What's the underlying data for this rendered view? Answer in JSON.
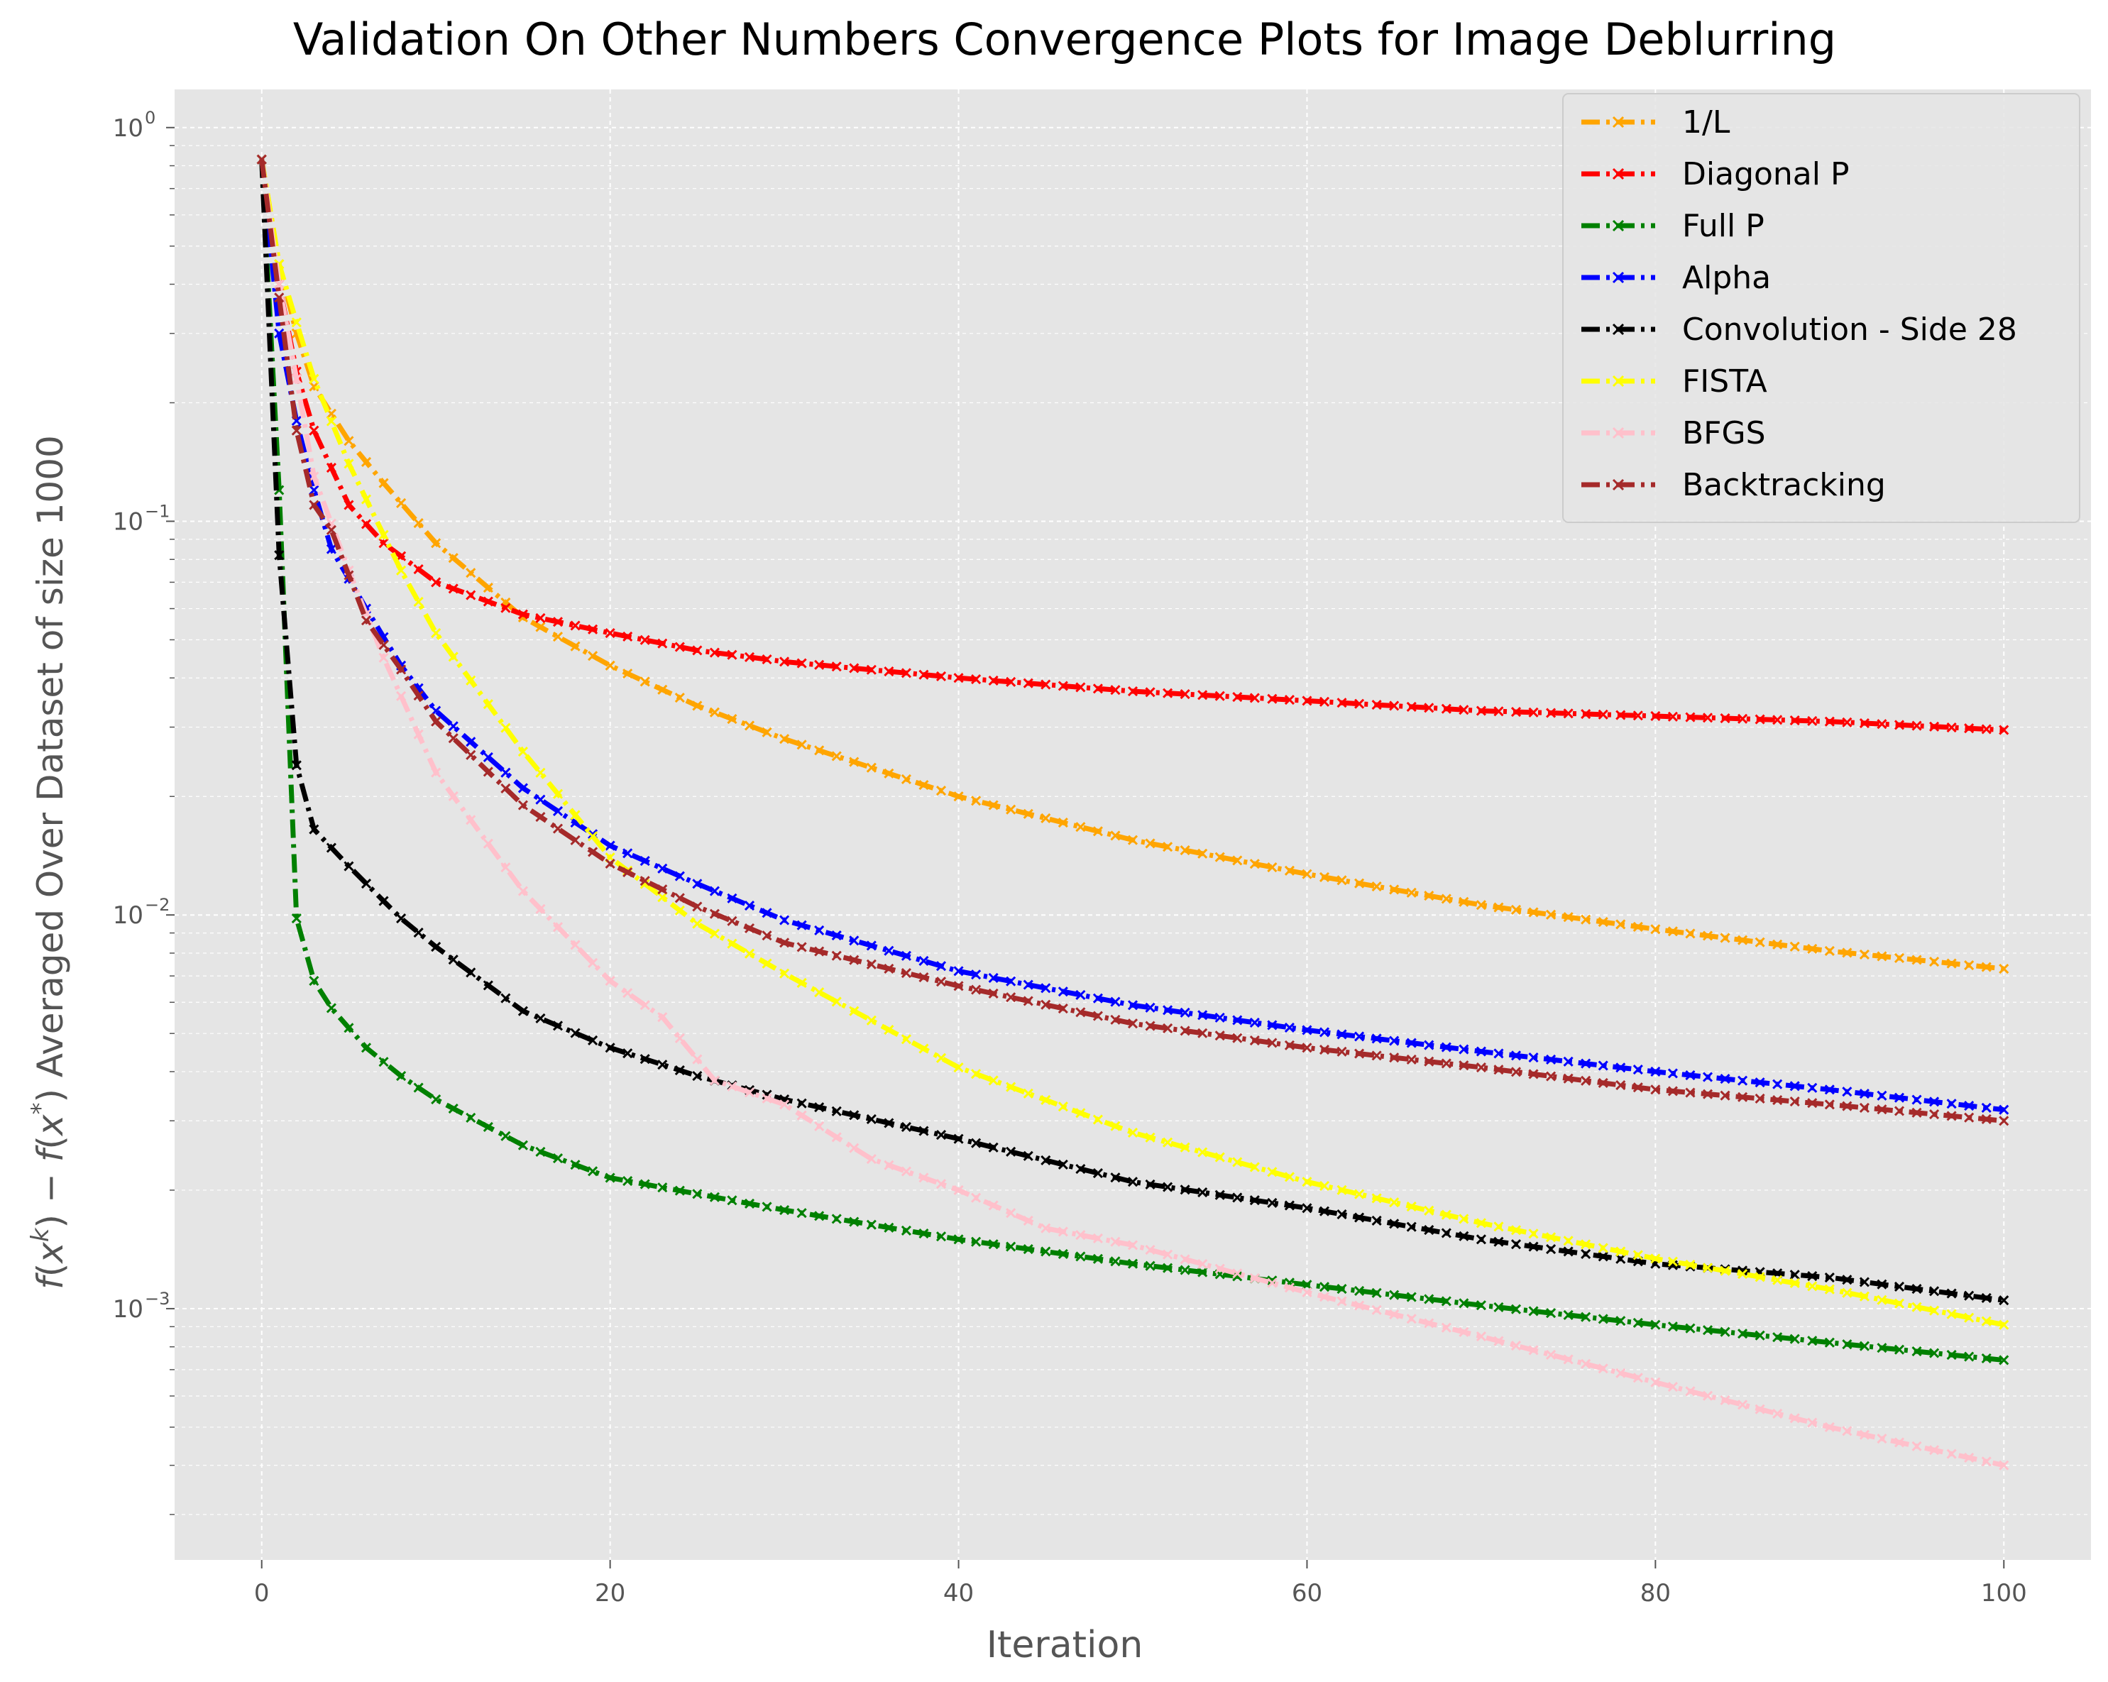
{
  "chart_data": {
    "type": "line",
    "title": "Validation On Other Numbers Convergence Plots for Image Deblurring",
    "xlabel": "Iteration",
    "ylabel": "f(x^k) − f(x*) Averaged Over Dataset of size 1000",
    "ylabel_parts": {
      "f1": "f",
      "x1": "x",
      "k": "k",
      "mid": ") − ",
      "f2": "f",
      "x2": "x",
      "star": "*",
      "tail": ") Averaged Over Dataset of size 1000"
    },
    "yscale": "log",
    "xlim": [
      -5,
      105
    ],
    "ylim": [
      0.00023,
      1.25
    ],
    "xticks": [
      0,
      20,
      40,
      60,
      80,
      100
    ],
    "xtick_labels": [
      "0",
      "20",
      "40",
      "60",
      "80",
      "100"
    ],
    "yticks": [
      0.001,
      0.01,
      0.1,
      1
    ],
    "ytick_labels": [
      {
        "base": "10",
        "exp": "−3"
      },
      {
        "base": "10",
        "exp": "−2"
      },
      {
        "base": "10",
        "exp": "−1"
      },
      {
        "base": "10",
        "exp": "0"
      }
    ],
    "grid": true,
    "legend_position": "top-right",
    "background": "#e5e5e5",
    "n_iterations": 100,
    "series": [
      {
        "name": "1/L",
        "color": "#ffa500",
        "marker": "x",
        "anchors": [
          [
            0,
            0.83
          ],
          [
            1,
            0.45
          ],
          [
            2,
            0.3
          ],
          [
            3,
            0.22
          ],
          [
            5,
            0.16
          ],
          [
            7,
            0.125
          ],
          [
            10,
            0.088
          ],
          [
            15,
            0.057
          ],
          [
            20,
            0.043
          ],
          [
            25,
            0.034
          ],
          [
            30,
            0.028
          ],
          [
            40,
            0.02
          ],
          [
            50,
            0.0155
          ],
          [
            60,
            0.0127
          ],
          [
            70,
            0.0106
          ],
          [
            80,
            0.0092
          ],
          [
            90,
            0.0081
          ],
          [
            100,
            0.0073
          ]
        ]
      },
      {
        "name": "Diagonal P",
        "color": "#ff0000",
        "marker": "x",
        "anchors": [
          [
            0,
            0.83
          ],
          [
            1,
            0.4
          ],
          [
            2,
            0.24
          ],
          [
            3,
            0.17
          ],
          [
            5,
            0.11
          ],
          [
            7,
            0.088
          ],
          [
            10,
            0.07
          ],
          [
            15,
            0.058
          ],
          [
            20,
            0.052
          ],
          [
            25,
            0.047
          ],
          [
            30,
            0.044
          ],
          [
            40,
            0.04
          ],
          [
            50,
            0.037
          ],
          [
            60,
            0.035
          ],
          [
            70,
            0.033
          ],
          [
            80,
            0.032
          ],
          [
            90,
            0.031
          ],
          [
            100,
            0.0295
          ]
        ]
      },
      {
        "name": "Full P",
        "color": "#008000",
        "marker": "x",
        "anchors": [
          [
            0,
            0.83
          ],
          [
            1,
            0.12
          ],
          [
            2,
            0.0098
          ],
          [
            3,
            0.0068
          ],
          [
            4,
            0.0058
          ],
          [
            6,
            0.0046
          ],
          [
            8,
            0.0039
          ],
          [
            10,
            0.0034
          ],
          [
            15,
            0.0026
          ],
          [
            20,
            0.00215
          ],
          [
            30,
            0.00178
          ],
          [
            40,
            0.0015
          ],
          [
            50,
            0.0013
          ],
          [
            60,
            0.00115
          ],
          [
            70,
            0.00102
          ],
          [
            80,
            0.00091
          ],
          [
            90,
            0.00082
          ],
          [
            100,
            0.00074
          ]
        ]
      },
      {
        "name": "Alpha",
        "color": "#0000ff",
        "marker": "x",
        "anchors": [
          [
            0,
            0.83
          ],
          [
            1,
            0.3
          ],
          [
            2,
            0.18
          ],
          [
            3,
            0.12
          ],
          [
            4,
            0.085
          ],
          [
            6,
            0.06
          ],
          [
            8,
            0.043
          ],
          [
            10,
            0.033
          ],
          [
            15,
            0.021
          ],
          [
            20,
            0.015
          ],
          [
            25,
            0.012
          ],
          [
            30,
            0.0097
          ],
          [
            40,
            0.0072
          ],
          [
            50,
            0.0059
          ],
          [
            60,
            0.0051
          ],
          [
            70,
            0.0045
          ],
          [
            80,
            0.004
          ],
          [
            90,
            0.0036
          ],
          [
            100,
            0.0032
          ]
        ]
      },
      {
        "name": "Convolution - Side 28",
        "color": "#000000",
        "marker": "x",
        "anchors": [
          [
            0,
            0.83
          ],
          [
            1,
            0.082
          ],
          [
            2,
            0.024
          ],
          [
            3,
            0.0165
          ],
          [
            5,
            0.0133
          ],
          [
            8,
            0.0098
          ],
          [
            10,
            0.0083
          ],
          [
            15,
            0.0057
          ],
          [
            20,
            0.0046
          ],
          [
            25,
            0.0039
          ],
          [
            30,
            0.0034
          ],
          [
            40,
            0.0027
          ],
          [
            50,
            0.0021
          ],
          [
            60,
            0.0018
          ],
          [
            70,
            0.0015
          ],
          [
            80,
            0.0013
          ],
          [
            90,
            0.0012
          ],
          [
            100,
            0.00105
          ]
        ]
      },
      {
        "name": "FISTA",
        "color": "#ffff00",
        "marker": "x",
        "anchors": [
          [
            0,
            0.83
          ],
          [
            1,
            0.45
          ],
          [
            2,
            0.32
          ],
          [
            3,
            0.23
          ],
          [
            5,
            0.14
          ],
          [
            8,
            0.075
          ],
          [
            10,
            0.052
          ],
          [
            15,
            0.026
          ],
          [
            20,
            0.014
          ],
          [
            25,
            0.0095
          ],
          [
            30,
            0.0071
          ],
          [
            40,
            0.0041
          ],
          [
            50,
            0.0028
          ],
          [
            60,
            0.0021
          ],
          [
            70,
            0.00165
          ],
          [
            80,
            0.00134
          ],
          [
            90,
            0.00112
          ],
          [
            100,
            0.00091
          ]
        ]
      },
      {
        "name": "BFGS",
        "color": "#ffc0cb",
        "marker": "x",
        "anchors": [
          [
            0,
            0.83
          ],
          [
            1,
            0.4
          ],
          [
            2,
            0.23
          ],
          [
            3,
            0.13
          ],
          [
            5,
            0.075
          ],
          [
            7,
            0.045
          ],
          [
            10,
            0.023
          ],
          [
            15,
            0.0115
          ],
          [
            20,
            0.0068
          ],
          [
            23,
            0.0055
          ],
          [
            26,
            0.0038
          ],
          [
            30,
            0.0033
          ],
          [
            35,
            0.0024
          ],
          [
            40,
            0.002
          ],
          [
            45,
            0.0016
          ],
          [
            50,
            0.00145
          ],
          [
            60,
            0.0011
          ],
          [
            70,
            0.00085
          ],
          [
            80,
            0.00065
          ],
          [
            90,
            0.0005
          ],
          [
            100,
            0.0004
          ]
        ]
      },
      {
        "name": "Backtracking",
        "color": "#a52a2a",
        "marker": "x",
        "anchors": [
          [
            0,
            0.83
          ],
          [
            1,
            0.37
          ],
          [
            2,
            0.17
          ],
          [
            3,
            0.11
          ],
          [
            4,
            0.095
          ],
          [
            6,
            0.056
          ],
          [
            8,
            0.042
          ],
          [
            10,
            0.031
          ],
          [
            15,
            0.019
          ],
          [
            20,
            0.0135
          ],
          [
            25,
            0.0105
          ],
          [
            30,
            0.0085
          ],
          [
            40,
            0.0066
          ],
          [
            50,
            0.0053
          ],
          [
            60,
            0.0046
          ],
          [
            70,
            0.0041
          ],
          [
            80,
            0.0036
          ],
          [
            90,
            0.0033
          ],
          [
            100,
            0.003
          ]
        ]
      }
    ]
  }
}
